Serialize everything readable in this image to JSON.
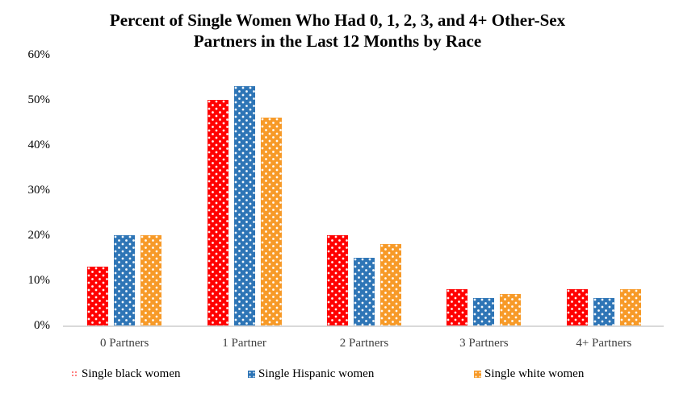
{
  "title": {
    "line1": "Percent of Single Women Who Had 0, 1, 2, 3, and 4+ Other-Sex",
    "line2": "Partners in the Last 12 Months by Race"
  },
  "chart_data": {
    "type": "bar",
    "title": "Percent of Single Women Who Had 0, 1, 2, 3, and 4+ Other-Sex Partners in the Last 12 Months by Race",
    "categories": [
      "0 Partners",
      "1 Partner",
      "2 Partners",
      "3 Partners",
      "4+ Partners"
    ],
    "series": [
      {
        "name": "Single black women",
        "color": "#FF0000",
        "values": [
          13,
          50,
          20,
          8,
          8
        ]
      },
      {
        "name": "Single Hispanic women",
        "color": "#2E75B6",
        "values": [
          20,
          53,
          15,
          6,
          6
        ]
      },
      {
        "name": "Single white women",
        "color": "#F79A28",
        "values": [
          20,
          46,
          18,
          7,
          8
        ]
      }
    ],
    "ylabel": "",
    "xlabel": "",
    "ylim": [
      0,
      60
    ],
    "y_ticks": [
      "0%",
      "10%",
      "20%",
      "30%",
      "40%",
      "50%",
      "60%"
    ],
    "grid": false,
    "legend_position": "bottom",
    "bar_fill_pattern": "white-dots"
  }
}
